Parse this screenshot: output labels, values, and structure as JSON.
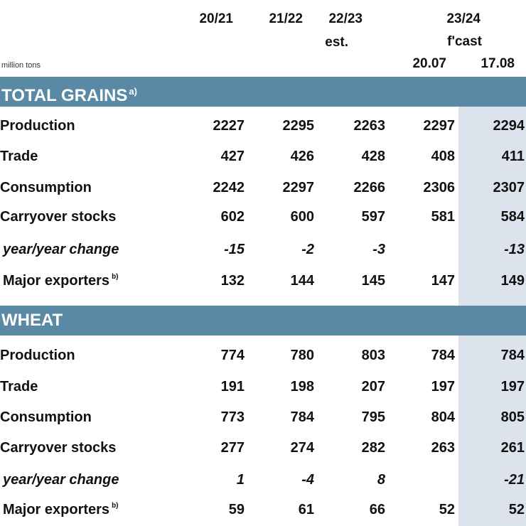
{
  "header": {
    "years": [
      "20/21",
      "21/22",
      "22/23",
      "23/24"
    ],
    "est_label": "est.",
    "fcast_label": "f'cast",
    "forecast_dates": [
      "20.07",
      "17.08"
    ],
    "unit": "million tons"
  },
  "sections": [
    {
      "title": "TOTAL GRAINS",
      "footnote": "a)",
      "rows": [
        {
          "label": "Production",
          "values": [
            "2227",
            "2295",
            "2263",
            "2297",
            "2294"
          ]
        },
        {
          "label": "Trade",
          "values": [
            "427",
            "426",
            "428",
            "408",
            "411"
          ]
        },
        {
          "label": "Consumption",
          "values": [
            "2242",
            "2297",
            "2266",
            "2306",
            "2307"
          ]
        },
        {
          "label": "Carryover stocks",
          "values": [
            "602",
            "600",
            "597",
            "581",
            "584"
          ]
        },
        {
          "label": "year/year change",
          "values": [
            "-15",
            "-2",
            "-3",
            "",
            "-13"
          ]
        },
        {
          "label": "Major exporters",
          "footnote": "b)",
          "values": [
            "132",
            "144",
            "145",
            "147",
            "149"
          ]
        }
      ]
    },
    {
      "title": "WHEAT",
      "footnote": "",
      "rows": [
        {
          "label": "Production",
          "values": [
            "774",
            "780",
            "803",
            "784",
            "784"
          ]
        },
        {
          "label": "Trade",
          "values": [
            "191",
            "198",
            "207",
            "197",
            "197"
          ]
        },
        {
          "label": "Consumption",
          "values": [
            "773",
            "784",
            "795",
            "804",
            "805"
          ]
        },
        {
          "label": "Carryover stocks",
          "values": [
            "277",
            "274",
            "282",
            "263",
            "261"
          ]
        },
        {
          "label": "year/year change",
          "values": [
            "1",
            "-4",
            "8",
            "",
            "-21"
          ]
        },
        {
          "label": "Major exporters",
          "footnote": "b)",
          "values": [
            "59",
            "61",
            "66",
            "52",
            "52"
          ]
        }
      ]
    }
  ],
  "colors": {
    "band": "#5a89a6",
    "highlight_column": "#dde3ec"
  }
}
